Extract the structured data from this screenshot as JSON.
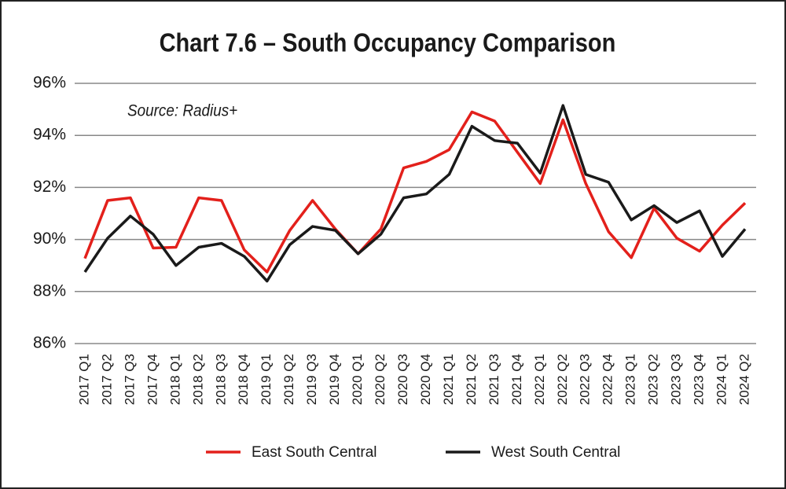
{
  "chart_data": {
    "type": "line",
    "title": "Chart 7.6 – South Occupancy Comparison",
    "annotation": "Source: Radius+",
    "categories": [
      "2017 Q1",
      "2017 Q2",
      "2017 Q3",
      "2017 Q4",
      "2018 Q1",
      "2018 Q2",
      "2018 Q3",
      "2018 Q4",
      "2019 Q1",
      "2019 Q2",
      "2019 Q3",
      "2019 Q4",
      "2020 Q1",
      "2020 Q2",
      "2020 Q3",
      "2020 Q4",
      "2021 Q1",
      "2021 Q2",
      "2021 Q3",
      "2021 Q4",
      "2022 Q1",
      "2022 Q2",
      "2022 Q3",
      "2022 Q4",
      "2023 Q1",
      "2023 Q2",
      "2023 Q3",
      "2023 Q4",
      "2024 Q1",
      "2024 Q2"
    ],
    "series": [
      {
        "name": "East South Central",
        "color": "#e3201b",
        "values": [
          89.27,
          91.5,
          91.6,
          89.67,
          89.7,
          91.6,
          91.5,
          89.6,
          88.75,
          90.35,
          91.5,
          90.4,
          89.45,
          90.4,
          92.75,
          93.0,
          93.45,
          94.9,
          94.55,
          93.35,
          92.15,
          94.6,
          92.15,
          90.3,
          89.3,
          91.2,
          90.05,
          89.55,
          90.55,
          91.4
        ]
      },
      {
        "name": "West South Central",
        "color": "#1a1a1a",
        "values": [
          88.75,
          90.05,
          90.9,
          90.2,
          89.0,
          89.7,
          89.85,
          89.35,
          88.4,
          89.8,
          90.5,
          90.35,
          89.45,
          90.2,
          91.6,
          91.75,
          92.5,
          94.35,
          93.8,
          93.7,
          92.55,
          95.15,
          92.5,
          92.2,
          90.75,
          91.3,
          90.65,
          91.1,
          89.35,
          90.4
        ]
      }
    ],
    "ylim": [
      86,
      96
    ],
    "yticks": [
      {
        "value": 86,
        "label": "86%"
      },
      {
        "value": 88,
        "label": "88%"
      },
      {
        "value": 90,
        "label": "90%"
      },
      {
        "value": 92,
        "label": "92%"
      },
      {
        "value": 94,
        "label": "94%"
      },
      {
        "value": 96,
        "label": "96%"
      }
    ],
    "grid": true,
    "legend": "bottom"
  }
}
